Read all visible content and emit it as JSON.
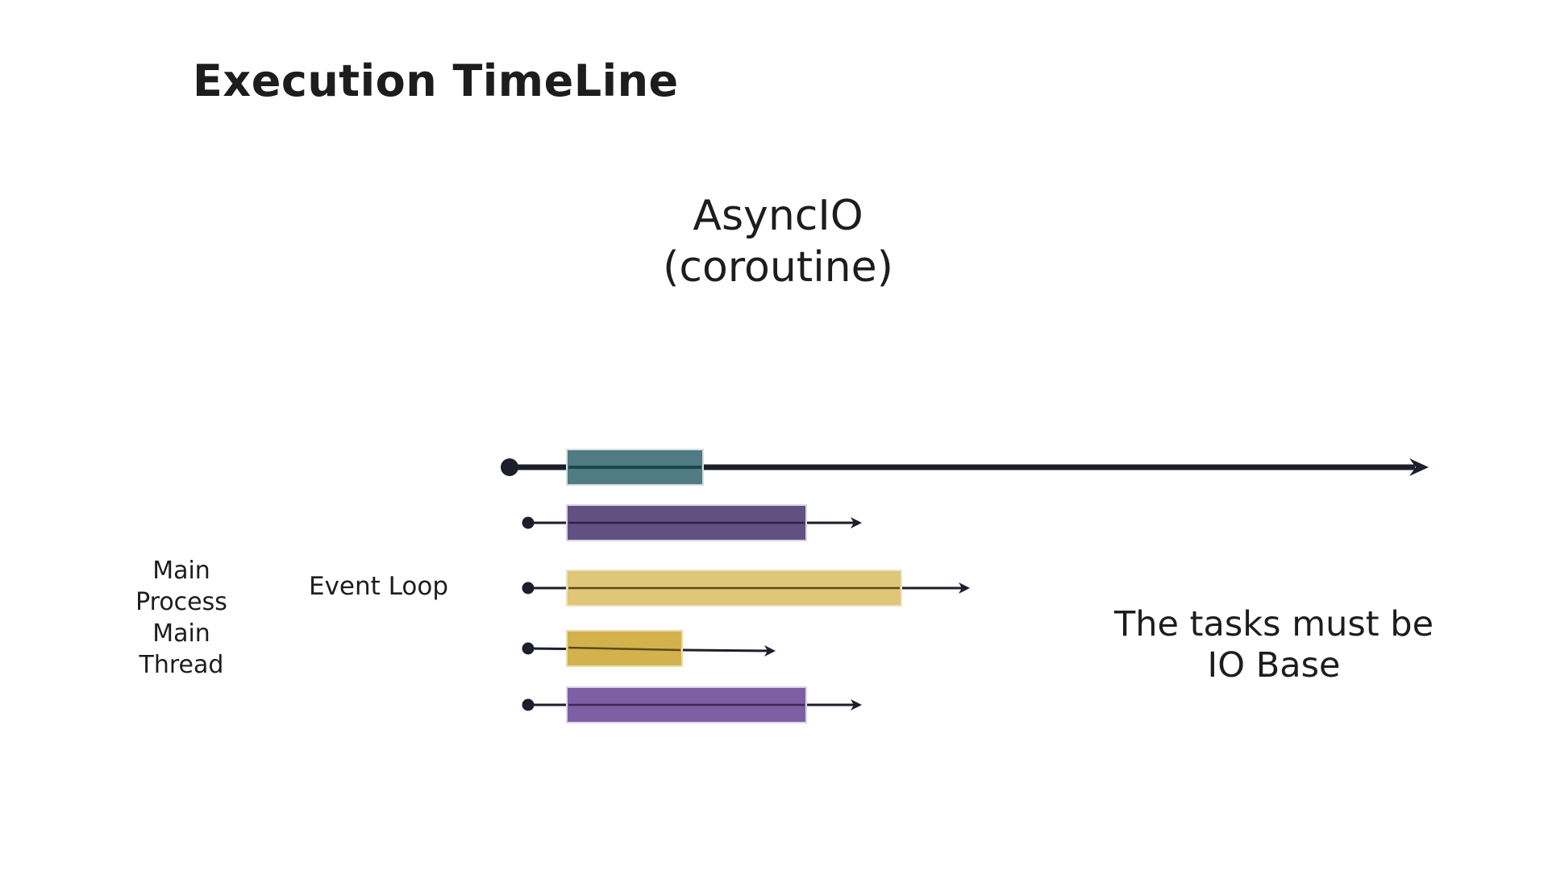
{
  "header": {
    "title": "Execution TimeLine"
  },
  "diagram": {
    "subtitle_lines": [
      "AsyncIO",
      "(coroutine)"
    ],
    "process_label_lines": [
      "Main",
      "Process",
      "Main",
      "Thread"
    ],
    "loop_label": "Event Loop",
    "note_lines": [
      "The tasks must be",
      "IO Base"
    ]
  },
  "colors": {
    "axis": "#1c1f2b",
    "task_teal": "#4f7b83",
    "task_dark_purple": "#635083",
    "task_light_gold": "#dfc679",
    "task_gold": "#d2b24c",
    "task_purple": "#7e5fa3"
  }
}
